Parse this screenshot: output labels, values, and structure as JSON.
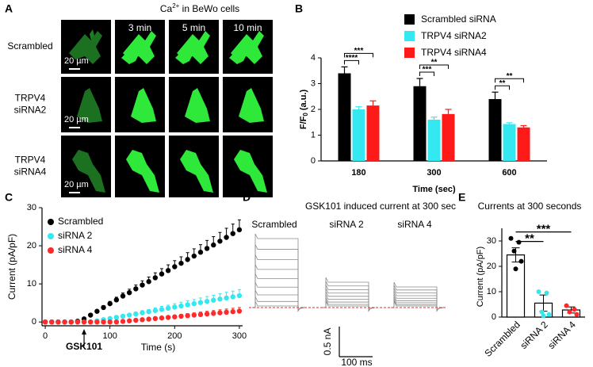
{
  "panel_labels": [
    "A",
    "B",
    "C",
    "D",
    "E"
  ],
  "panel_a": {
    "title": {
      "base": "Ca",
      "sup": "2+",
      "rest": " in BeWo cells"
    },
    "timepoints": [
      "3 min",
      "5 min",
      "10 min"
    ],
    "rows": [
      {
        "label": [
          "Scrambled"
        ],
        "scale_bar": "20 µm"
      },
      {
        "label": [
          "TRPV4",
          "siRNA2"
        ],
        "scale_bar": "20 µm"
      },
      {
        "label": [
          "TRPV4",
          "siRNA4"
        ],
        "scale_bar": "20 µm"
      }
    ]
  },
  "chart_data": [
    {
      "type": "bar",
      "categories": [
        "180",
        "300",
        "600"
      ],
      "x_label": "Time (sec)",
      "y_label": {
        "base": "F/F",
        "sub": "0",
        "rest": " (a.u.)"
      },
      "ylim": [
        0,
        4
      ],
      "yticks": [
        0,
        1,
        2,
        3,
        4
      ],
      "series": [
        {
          "name": "Scrambled siRNA",
          "color": "#000000",
          "values": [
            3.4,
            2.9,
            2.4
          ],
          "errors": [
            0.25,
            0.3,
            0.27
          ]
        },
        {
          "name": "TRPV4 siRNA2",
          "color": "#33e8f0",
          "values": [
            2.0,
            1.6,
            1.43
          ],
          "errors": [
            0.1,
            0.1,
            0.05
          ]
        },
        {
          "name": "TRPV4 siRNA4",
          "color": "#ff1a1a",
          "values": [
            2.15,
            1.82,
            1.3
          ],
          "errors": [
            0.18,
            0.18,
            0.07
          ]
        }
      ],
      "significance": [
        [
          "****",
          "***"
        ],
        [
          "***",
          "**"
        ],
        [
          "**",
          "**"
        ]
      ]
    },
    {
      "type": "line",
      "x_label": "Time (s)",
      "y_label": "Current (pA/pF)",
      "annotation": {
        "text": "GSK101",
        "x": 60
      },
      "xlim": [
        -5,
        305
      ],
      "ylim": [
        -1,
        30
      ],
      "xticks": [
        0,
        100,
        200,
        300
      ],
      "yticks": [
        0,
        10,
        20,
        30
      ],
      "x": [
        0,
        10,
        20,
        30,
        40,
        50,
        60,
        70,
        80,
        90,
        100,
        110,
        120,
        130,
        140,
        150,
        160,
        170,
        180,
        190,
        200,
        210,
        220,
        230,
        240,
        250,
        260,
        270,
        280,
        290,
        300
      ],
      "series": [
        {
          "name": "Scrambled",
          "color": "#000000",
          "values": [
            0,
            0,
            0,
            0,
            0,
            0.2,
            0.8,
            1.8,
            2.8,
            3.8,
            4.8,
            5.8,
            6.8,
            7.7,
            8.7,
            9.7,
            10.6,
            11.6,
            12.6,
            13.5,
            14.5,
            15.4,
            16.4,
            17.3,
            18.3,
            19.3,
            20.2,
            21.2,
            22.2,
            23.2,
            24.2
          ],
          "errors": [
            0,
            0,
            0,
            0,
            0,
            0.1,
            0.2,
            0.3,
            0.4,
            0.5,
            0.6,
            0.7,
            0.8,
            0.9,
            1.0,
            1.1,
            1.2,
            1.3,
            1.4,
            1.5,
            1.6,
            1.7,
            1.8,
            1.9,
            2.0,
            2.1,
            2.2,
            2.3,
            2.4,
            2.5,
            2.6
          ]
        },
        {
          "name": "siRNA 2",
          "color": "#33e8f0",
          "values": [
            0,
            0,
            0,
            0,
            0,
            0,
            0,
            0,
            0.3,
            0.6,
            0.9,
            1.2,
            1.5,
            1.8,
            2.1,
            2.4,
            2.7,
            3.0,
            3.3,
            3.6,
            3.9,
            4.2,
            4.5,
            4.8,
            5.1,
            5.4,
            5.7,
            6.0,
            6.3,
            6.6,
            6.9
          ],
          "errors": [
            0,
            0,
            0,
            0,
            0,
            0,
            0,
            0,
            0.1,
            0.1,
            0.2,
            0.3,
            0.4,
            0.4,
            0.5,
            0.6,
            0.6,
            0.7,
            0.8,
            0.8,
            0.9,
            1.0,
            1.1,
            1.1,
            1.2,
            1.3,
            1.3,
            1.4,
            1.5,
            1.5,
            1.6
          ]
        },
        {
          "name": "siRNA 4",
          "color": "#ff2a2a",
          "values": [
            0,
            0,
            0,
            0,
            0,
            0,
            0,
            0,
            0,
            0,
            0,
            0,
            0.15,
            0.3,
            0.45,
            0.6,
            0.75,
            0.9,
            1.05,
            1.2,
            1.35,
            1.5,
            1.65,
            1.8,
            1.95,
            2.1,
            2.25,
            2.4,
            2.55,
            2.7,
            2.85
          ],
          "errors": [
            0,
            0,
            0,
            0,
            0,
            0,
            0,
            0,
            0,
            0,
            0,
            0,
            0.05,
            0.1,
            0.15,
            0.2,
            0.25,
            0.3,
            0.35,
            0.4,
            0.45,
            0.5,
            0.55,
            0.6,
            0.65,
            0.7,
            0.75,
            0.8,
            0.85,
            0.9,
            0.95
          ]
        }
      ]
    },
    {
      "type": "bar",
      "title": "Currents at 300 seconds",
      "y_label": "Current (pA/pF)",
      "categories": [
        "Scrambled",
        "siRNA 2",
        "siRNA 4"
      ],
      "values": [
        24.5,
        5.5,
        2.8
      ],
      "errors": [
        2.8,
        3.2,
        1.2
      ],
      "color": "#ffffff",
      "points": [
        [
          31,
          29.5,
          26,
          22,
          19
        ],
        [
          10,
          9.5,
          2,
          1,
          0.5
        ],
        [
          4.5,
          3,
          2,
          1
        ]
      ],
      "point_colors": [
        "#000000",
        "#33e8f0",
        "#ff2a2a"
      ],
      "ylim": [
        0,
        35
      ],
      "yticks": [
        0,
        10,
        20,
        30
      ],
      "significance": [
        "**",
        "***"
      ]
    }
  ],
  "panel_d": {
    "title": "GSK101 induced current at 300 sec",
    "conditions": [
      "Scrambled",
      "siRNA 2",
      "siRNA 4"
    ],
    "scale_y": "0.5 nA",
    "scale_x": "100 ms"
  }
}
